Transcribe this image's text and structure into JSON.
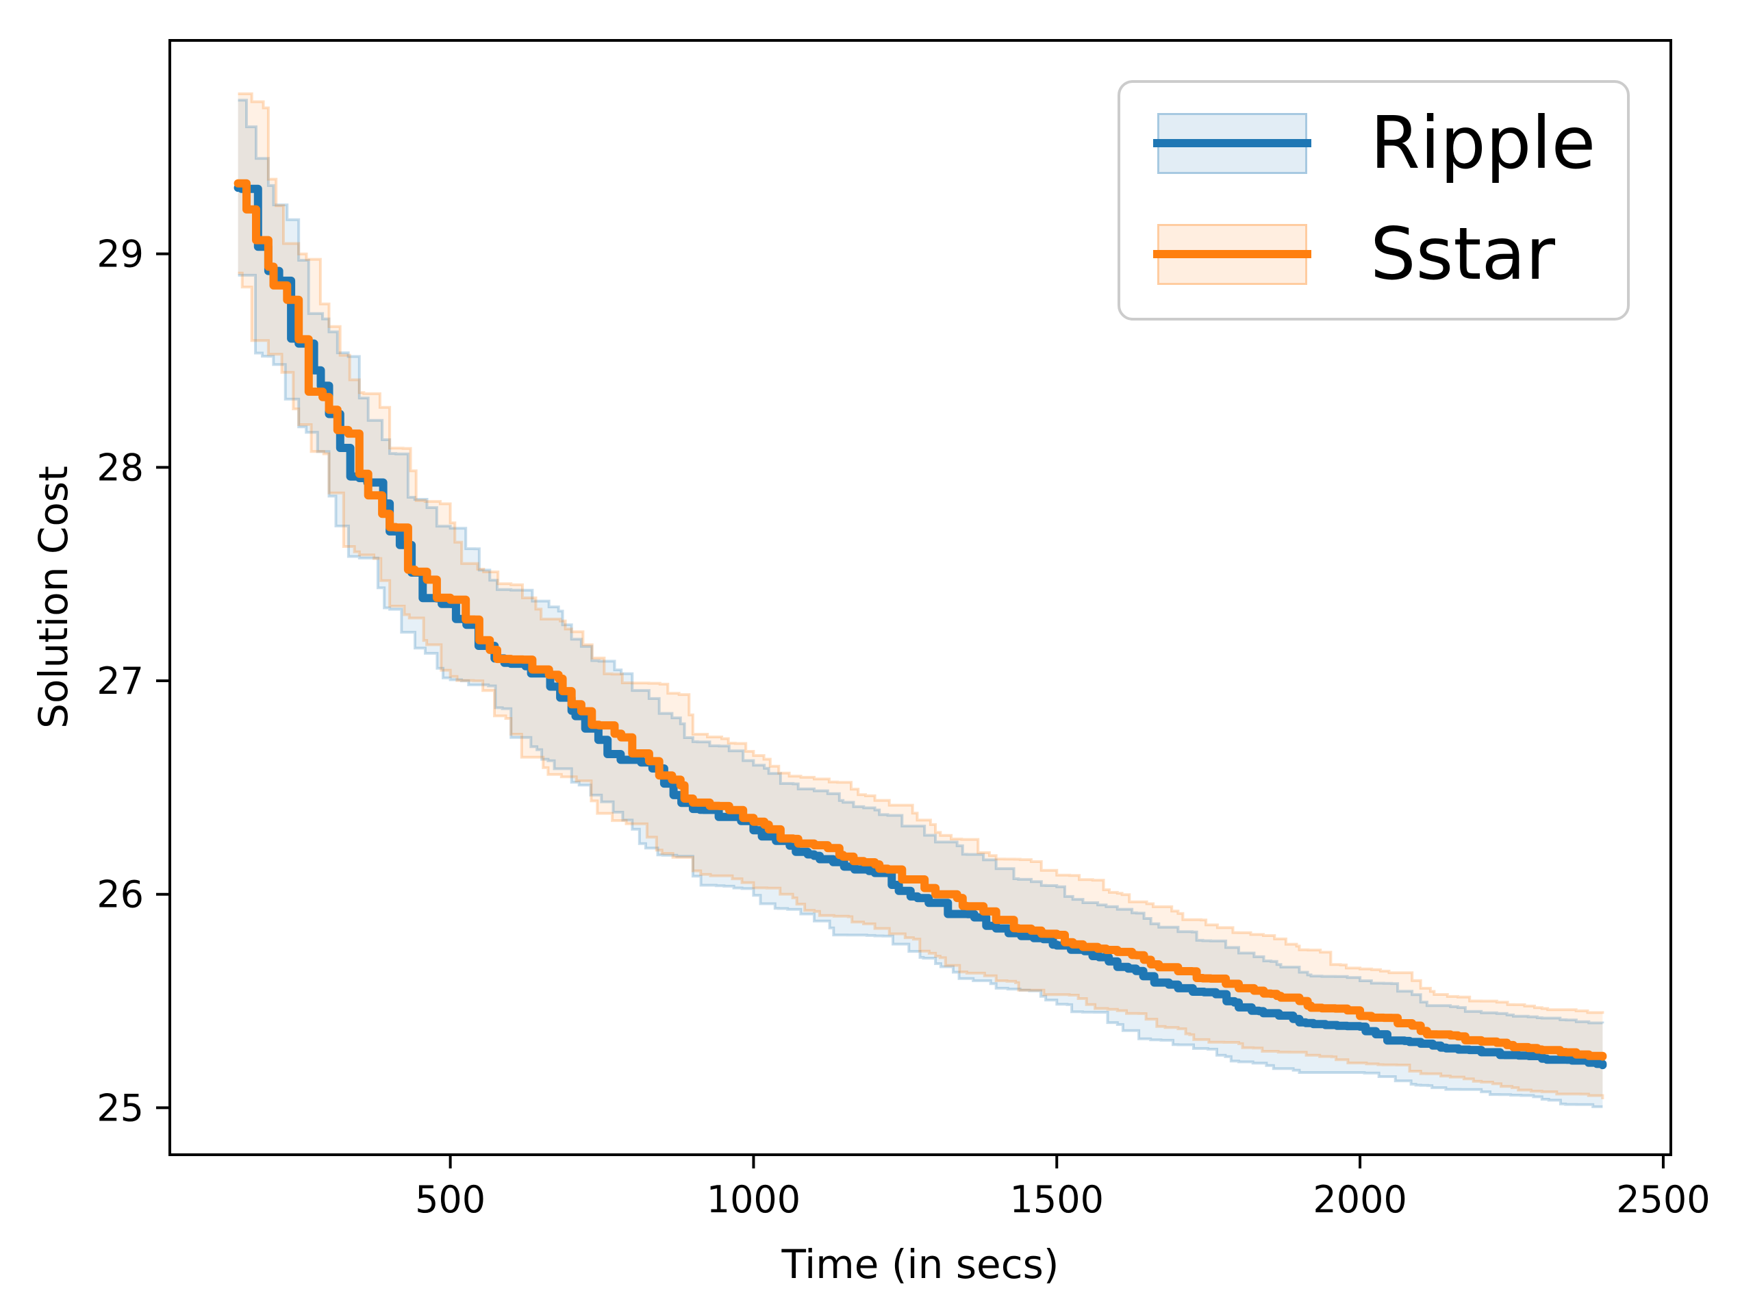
{
  "figure": {
    "background": "#ffffff",
    "text_color": "#000000",
    "spine_color": "#000000",
    "legend_border_color": "#cccccc"
  },
  "chart_data": {
    "type": "line",
    "title": "",
    "xlabel": "Time (in secs)",
    "ylabel": "Solution Cost",
    "xlim": [
      37.5,
      2512.5
    ],
    "ylim": [
      24.78,
      30.0
    ],
    "x_ticks": [
      500,
      1000,
      1500,
      2000,
      2500
    ],
    "y_ticks": [
      25,
      26,
      27,
      28,
      29
    ],
    "grid": false,
    "legend_position": "upper right",
    "band_style": "mean ± shaded confidence band",
    "x": [
      150,
      200,
      250,
      300,
      350,
      400,
      500,
      600,
      700,
      800,
      900,
      1000,
      1100,
      1200,
      1300,
      1400,
      1500,
      1600,
      1700,
      1800,
      1900,
      2000,
      2100,
      2200,
      2300,
      2400
    ],
    "series": [
      {
        "name": "Ripple",
        "color": "#1f77b4",
        "band_alpha": 0.11,
        "y": [
          29.31,
          28.92,
          28.58,
          28.25,
          27.95,
          27.7,
          27.36,
          27.08,
          26.86,
          26.63,
          26.4,
          26.3,
          26.18,
          26.1,
          25.96,
          25.84,
          25.76,
          25.66,
          25.56,
          25.47,
          25.4,
          25.38,
          25.3,
          25.26,
          25.23,
          25.2
        ],
        "band_half": [
          0.41,
          0.4,
          0.39,
          0.385,
          0.375,
          0.365,
          0.355,
          0.345,
          0.335,
          0.325,
          0.315,
          0.305,
          0.305,
          0.295,
          0.285,
          0.28,
          0.275,
          0.27,
          0.265,
          0.255,
          0.235,
          0.215,
          0.195,
          0.185,
          0.19,
          0.195
        ]
      },
      {
        "name": "Sstar",
        "color": "#ff7f0e",
        "band_alpha": 0.11,
        "y": [
          29.33,
          28.94,
          28.6,
          28.27,
          27.97,
          27.72,
          27.38,
          27.1,
          26.89,
          26.66,
          26.43,
          26.34,
          26.23,
          26.14,
          26.0,
          25.88,
          25.81,
          25.73,
          25.64,
          25.56,
          25.5,
          25.43,
          25.36,
          25.31,
          25.27,
          25.24
        ],
        "band_half": [
          0.42,
          0.41,
          0.4,
          0.39,
          0.38,
          0.37,
          0.36,
          0.35,
          0.34,
          0.33,
          0.32,
          0.31,
          0.31,
          0.3,
          0.29,
          0.285,
          0.28,
          0.275,
          0.27,
          0.26,
          0.24,
          0.22,
          0.2,
          0.19,
          0.195,
          0.2
        ]
      }
    ]
  }
}
